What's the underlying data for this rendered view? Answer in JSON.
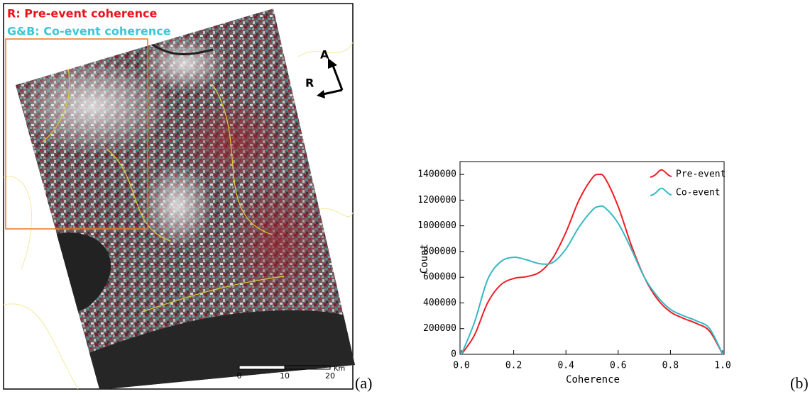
{
  "panel_a": {
    "legend_red": "R: Pre-event coherence",
    "legend_cyan": "G&B: Co-event coherence",
    "azimuth": "A",
    "range": "R",
    "scale_ticks": [
      "0",
      "10",
      "20"
    ],
    "scale_unit": "Km",
    "label": "(a)"
  },
  "chart_data": {
    "type": "line",
    "xlabel": "Coherence",
    "ylabel": "Count",
    "label": "(b)",
    "x": [
      0,
      0.05,
      0.1,
      0.15,
      0.2,
      0.25,
      0.3,
      0.35,
      0.4,
      0.45,
      0.5,
      0.525,
      0.55,
      0.6,
      0.65,
      0.7,
      0.75,
      0.8,
      0.85,
      0.9,
      0.95,
      1.0
    ],
    "series": [
      {
        "name": "Pre-event",
        "color": "#ee1c25",
        "values": [
          0,
          150000,
          400000,
          540000,
          590000,
          605000,
          640000,
          750000,
          950000,
          1200000,
          1370000,
          1400000,
          1370000,
          1150000,
          850000,
          600000,
          430000,
          330000,
          280000,
          240000,
          180000,
          0
        ]
      },
      {
        "name": "Co-event",
        "color": "#35b9c4",
        "values": [
          0,
          250000,
          580000,
          720000,
          755000,
          735000,
          705000,
          715000,
          820000,
          990000,
          1120000,
          1150000,
          1140000,
          1020000,
          820000,
          600000,
          450000,
          350000,
          300000,
          260000,
          200000,
          0
        ]
      }
    ],
    "xlim": [
      0,
      1
    ],
    "xticks": [
      {
        "value": 0,
        "label": "0.0"
      },
      0.2,
      0.4,
      0.6,
      0.8,
      {
        "value": 1,
        "label": "1.0"
      }
    ],
    "ylim": [
      0,
      1500000
    ],
    "yticks": [
      0,
      200000,
      400000,
      600000,
      800000,
      1000000,
      1200000,
      1400000
    ],
    "legend": "upper right"
  }
}
